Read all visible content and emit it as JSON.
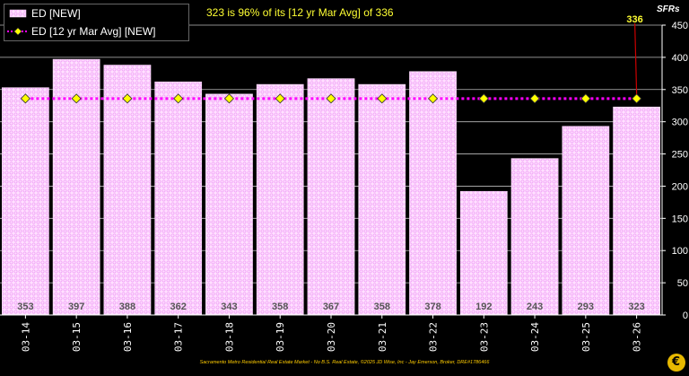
{
  "headline": "323 is 96% of its [12 yr Mar Avg] of 336",
  "unit_label": "SFRs",
  "footer": "Sacramento Metro Residential Real Estate Market - No B.S. Real Estate, ©2025 JD Wise, Inc - Jay Emerson, Broker, DRE#1786466",
  "legend": {
    "bar_label": "ED [NEW]",
    "line_label": "ED [12 yr Mar Avg] [NEW]"
  },
  "colors": {
    "background": "#000000",
    "bar_fill": "#ffe0ff",
    "bar_pattern": "#ef9ef6",
    "avg_line": "#ff00ff",
    "avg_marker": "#ffff00",
    "gridline": "#bbbbbb",
    "headline": "#ffff33",
    "callout_line": "#cc0000"
  },
  "chart_data": {
    "type": "bar",
    "title": "323 is 96% of its [12 yr Mar Avg] of 336",
    "ylabel": "SFRs",
    "categories": [
      "03-14",
      "03-15",
      "03-16",
      "03-17",
      "03-18",
      "03-19",
      "03-20",
      "03-21",
      "03-22",
      "03-23",
      "03-24",
      "03-25",
      "03-26"
    ],
    "series": [
      {
        "name": "ED [NEW]",
        "type": "bar",
        "values": [
          353,
          397,
          388,
          362,
          343,
          358,
          367,
          358,
          378,
          192,
          243,
          293,
          323
        ]
      },
      {
        "name": "ED [12 yr Mar Avg] [NEW]",
        "type": "line",
        "values": [
          336,
          336,
          336,
          336,
          336,
          336,
          336,
          336,
          336,
          336,
          336,
          336,
          336
        ]
      }
    ],
    "yticks": [
      0,
      50,
      100,
      150,
      200,
      250,
      300,
      350,
      400,
      450
    ],
    "ylim": [
      0,
      450
    ],
    "callout": {
      "label": "336",
      "category": "03-26",
      "value": 336
    },
    "grid": "horizontal",
    "legend_position": "top-left"
  }
}
